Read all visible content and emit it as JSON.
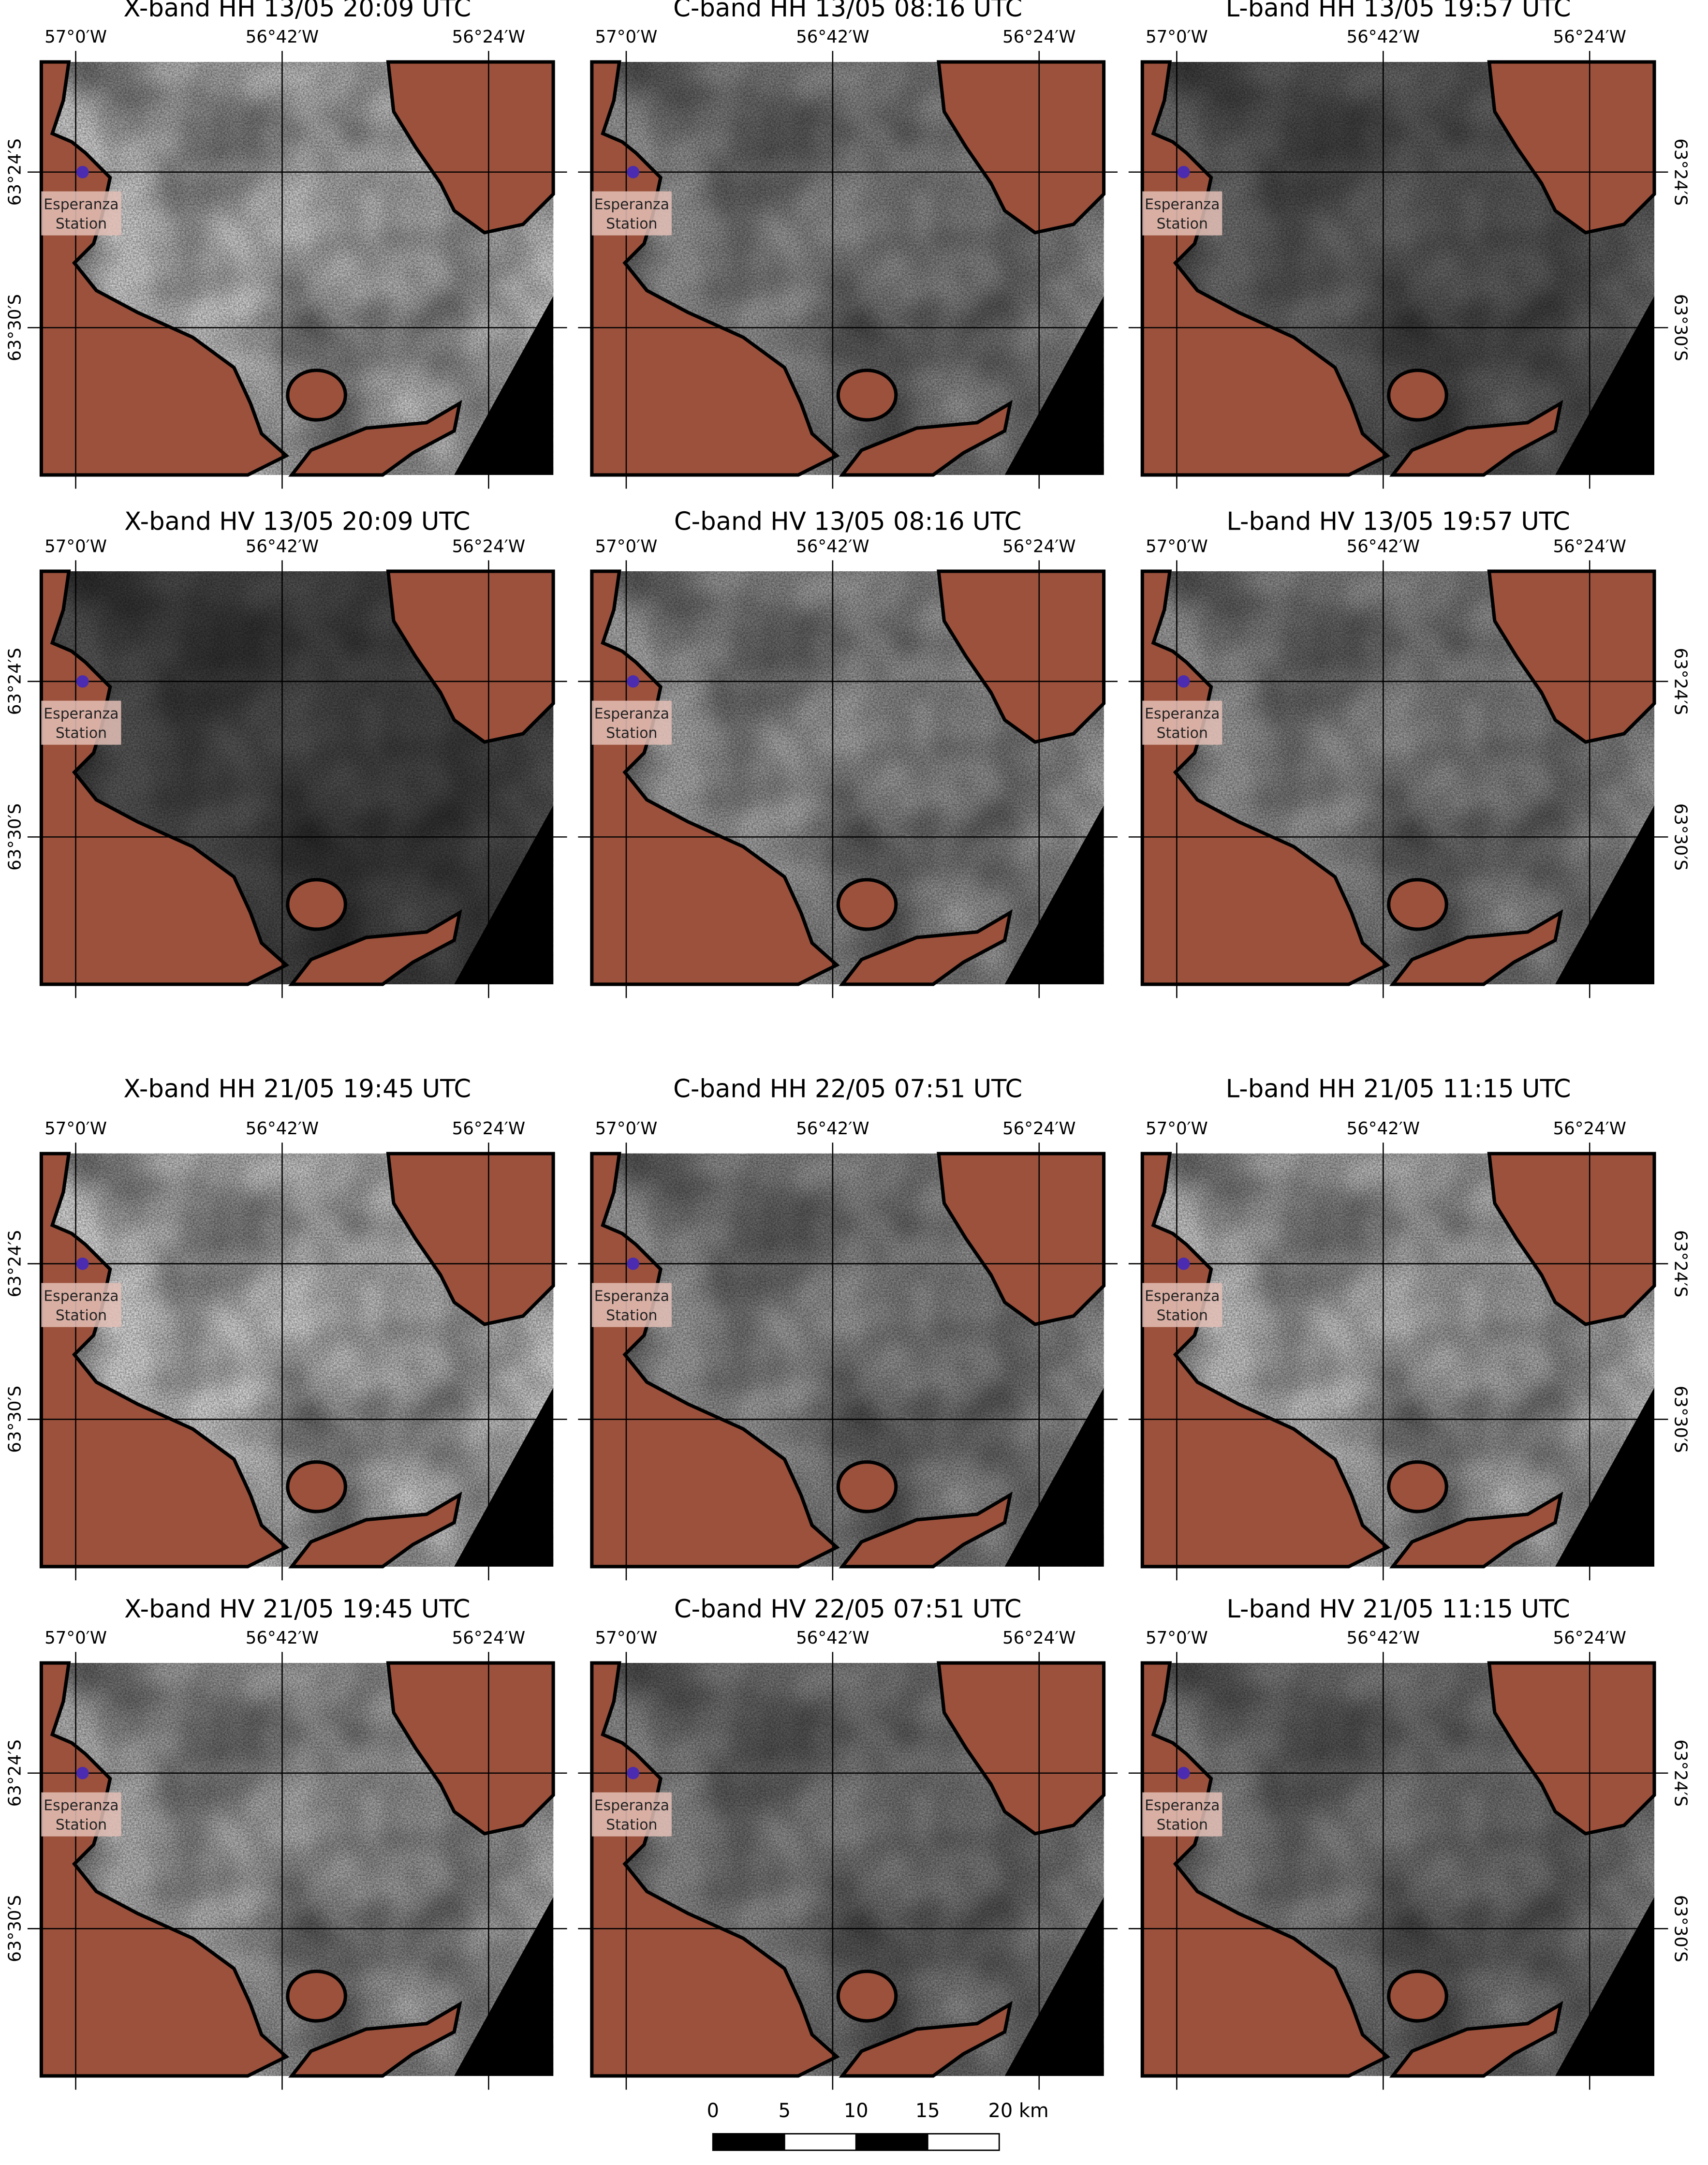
{
  "panels": [
    {
      "title": "X-band HH 13/05 20:09 UTC"
    },
    {
      "title": "C-band HH 13/05 08:16 UTC"
    },
    {
      "title": "L-band HH 13/05 19:57 UTC"
    },
    {
      "title": "X-band HV 13/05 20:09 UTC"
    },
    {
      "title": "C-band HV 13/05 08:16 UTC"
    },
    {
      "title": "L-band HV 13/05 19:57 UTC"
    },
    {
      "title": "X-band HH 21/05 19:45 UTC"
    },
    {
      "title": "C-band HH 22/05 07:51 UTC"
    },
    {
      "title": "L-band HH 21/05 11:15 UTC"
    },
    {
      "title": "X-band HV 21/05 19:45 UTC"
    },
    {
      "title": "C-band HV 22/05 07:51 UTC"
    },
    {
      "title": "L-band HV 21/05 11:15 UTC"
    }
  ],
  "longitude_labels": [
    "57°0′W",
    "56°42′W",
    "56°24′W"
  ],
  "latitude_labels": [
    "63°24′S",
    "63°30′S"
  ],
  "station_label": [
    "Esperanza",
    "Station"
  ],
  "scale_bar": {
    "labels": [
      "0",
      "5",
      "10",
      "15",
      "20 km"
    ]
  }
}
